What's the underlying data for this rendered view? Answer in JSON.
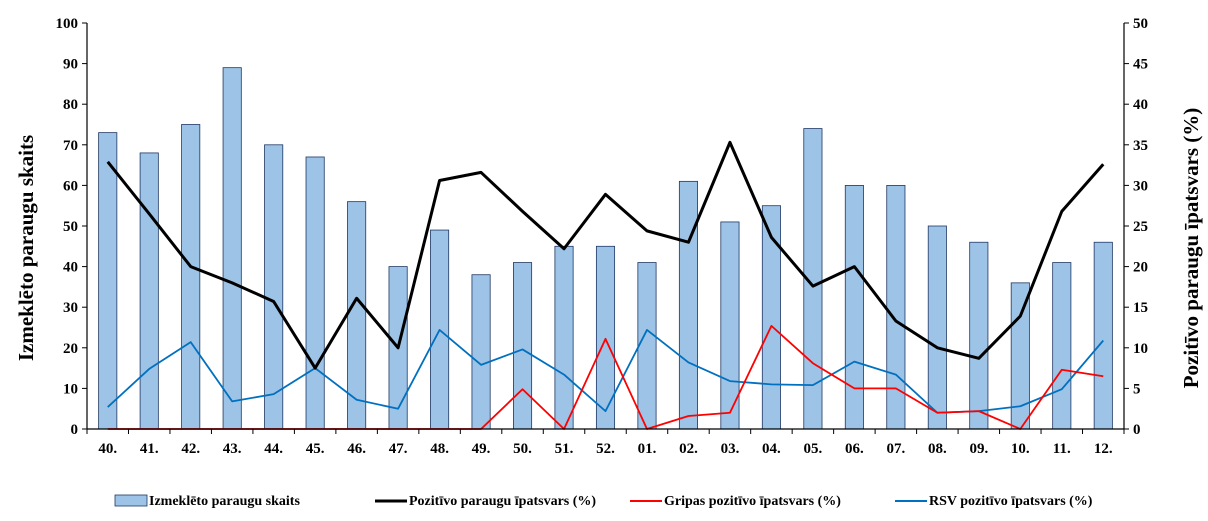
{
  "chart_data": {
    "type": "bar+line",
    "title": "",
    "categories": [
      "40.",
      "41.",
      "42.",
      "43.",
      "44.",
      "45.",
      "46.",
      "47.",
      "48.",
      "49.",
      "50.",
      "51.",
      "52.",
      "01.",
      "02.",
      "03.",
      "04.",
      "05.",
      "06.",
      "07.",
      "08.",
      "09.",
      "10.",
      "11.",
      "12."
    ],
    "y_left": {
      "label": "Izmeklēto paraugu skaits",
      "range": [
        0,
        100
      ],
      "ticks": [
        "0",
        "10",
        "20",
        "30",
        "40",
        "50",
        "60",
        "70",
        "80",
        "90",
        "100"
      ]
    },
    "y_right": {
      "label": "Pozitīvo paraugu īpatsvars (%)",
      "range": [
        0,
        50
      ],
      "ticks": [
        "0",
        "5",
        "10",
        "15",
        "20",
        "25",
        "30",
        "35",
        "40",
        "45",
        "50"
      ]
    },
    "grid": false,
    "legend_position": "bottom",
    "series": [
      {
        "name": "Izmeklēto paraugu skaits",
        "type": "bar",
        "axis": "left",
        "color": "#9dc3e6",
        "stroke": "#1f3864",
        "values": [
          73,
          68,
          75,
          89,
          70,
          67,
          56,
          40,
          49,
          38,
          41,
          45,
          45,
          41,
          61,
          51,
          55,
          74,
          60,
          60,
          50,
          46,
          36,
          41,
          46
        ]
      },
      {
        "name": "Pozitīvo paraugu īpatsvars (%)",
        "type": "line",
        "axis": "right",
        "color": "#000000",
        "values": [
          32.9,
          26.5,
          20.0,
          18.0,
          15.7,
          7.5,
          16.1,
          10.0,
          30.6,
          31.6,
          26.8,
          22.2,
          28.9,
          24.4,
          23.0,
          35.3,
          23.6,
          17.6,
          20.0,
          13.3,
          10.0,
          8.7,
          13.9,
          26.8,
          32.6
        ]
      },
      {
        "name": "Gripas pozitīvo  īpatsvars (%)",
        "type": "line",
        "axis": "right",
        "color": "#ff0000",
        "values": [
          0,
          0,
          0,
          0,
          0,
          0,
          0,
          0,
          0,
          0,
          4.9,
          0,
          11.1,
          0,
          1.6,
          2.0,
          12.7,
          8.1,
          5.0,
          5.0,
          2.0,
          2.2,
          0,
          7.3,
          6.5
        ]
      },
      {
        "name": "RSV pozitīvo īpatsvars (%)",
        "type": "line",
        "axis": "right",
        "color": "#0070c0",
        "values": [
          2.7,
          7.4,
          10.7,
          3.4,
          4.3,
          7.5,
          3.6,
          2.5,
          12.2,
          7.9,
          9.8,
          6.7,
          2.2,
          12.2,
          8.2,
          5.9,
          5.5,
          5.4,
          8.3,
          6.7,
          2.0,
          2.2,
          2.8,
          4.9,
          10.9
        ]
      }
    ]
  }
}
